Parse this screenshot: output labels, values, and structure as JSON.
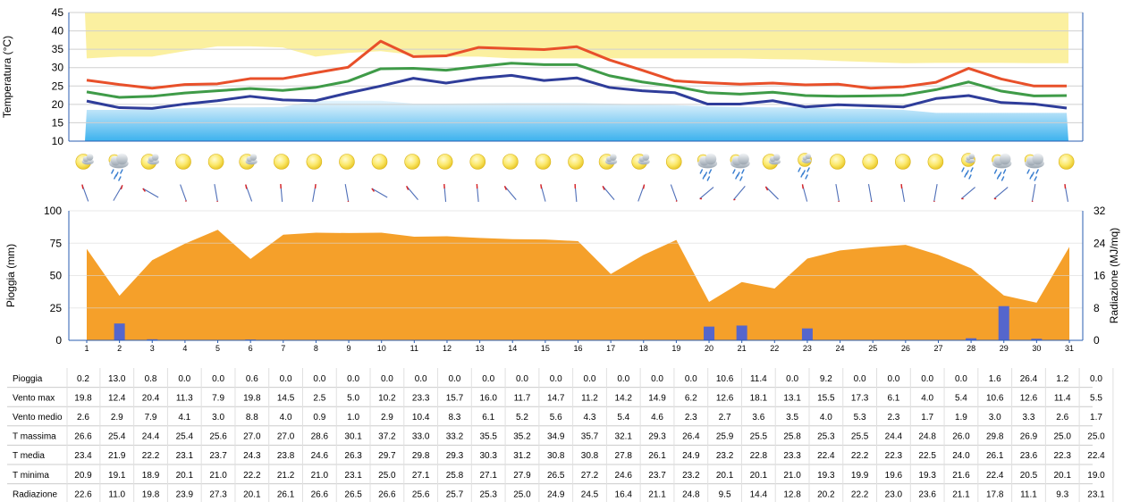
{
  "chart_data": [
    {
      "type": "line",
      "ylabel": "Temperatura (°C)",
      "ylim": [
        10,
        45
      ],
      "yticks": [
        10,
        15,
        20,
        25,
        30,
        35,
        40,
        45
      ],
      "x": [
        1,
        2,
        3,
        4,
        5,
        6,
        7,
        8,
        9,
        10,
        11,
        12,
        13,
        14,
        15,
        16,
        17,
        18,
        19,
        20,
        21,
        22,
        23,
        24,
        25,
        26,
        27,
        28,
        29,
        30,
        31
      ],
      "grid": true,
      "series": [
        {
          "name": "T massima",
          "color": "#e8502a",
          "values": [
            26.6,
            25.4,
            24.4,
            25.4,
            25.6,
            27.0,
            27.0,
            28.6,
            30.1,
            37.2,
            33.0,
            33.2,
            35.5,
            35.2,
            34.9,
            35.7,
            32.1,
            29.3,
            26.4,
            25.9,
            25.5,
            25.8,
            25.3,
            25.5,
            24.4,
            24.8,
            26.0,
            29.8,
            26.9,
            25.0,
            25.0
          ]
        },
        {
          "name": "T media",
          "color": "#3f9b48",
          "values": [
            23.4,
            21.9,
            22.2,
            23.1,
            23.7,
            24.3,
            23.8,
            24.6,
            26.3,
            29.7,
            29.8,
            29.3,
            30.3,
            31.2,
            30.8,
            30.8,
            27.8,
            26.1,
            24.9,
            23.2,
            22.8,
            23.3,
            22.4,
            22.2,
            22.3,
            22.5,
            24.0,
            26.1,
            23.6,
            22.3,
            22.4
          ]
        },
        {
          "name": "T minima",
          "color": "#2f3d9a",
          "values": [
            20.9,
            19.1,
            18.9,
            20.1,
            21.0,
            22.2,
            21.2,
            21.0,
            23.1,
            25.0,
            27.1,
            25.8,
            27.1,
            27.9,
            26.5,
            27.2,
            24.6,
            23.7,
            23.2,
            20.1,
            20.1,
            21.0,
            19.3,
            19.9,
            19.6,
            19.3,
            21.6,
            22.4,
            20.5,
            20.1,
            19.0
          ]
        }
      ],
      "band_upper": [
        32.5,
        33.0,
        33.0,
        34.5,
        35.8,
        35.8,
        35.5,
        33.0,
        34.0,
        34.5,
        33.5,
        33.0,
        33.0,
        32.5,
        32.5,
        32.5,
        32.5,
        32.5,
        32.5,
        32.5,
        32.5,
        32.3,
        32.2,
        31.8,
        31.5,
        31.2,
        31.3,
        31.3,
        31.3,
        31.2,
        31.2
      ],
      "band_lower": [
        18.5,
        18.5,
        18.6,
        19.0,
        19.2,
        19.2,
        19.3,
        21.0,
        21.0,
        21.0,
        20.2,
        20.2,
        20.3,
        20.4,
        20.4,
        20.4,
        20.2,
        20.0,
        19.8,
        19.5,
        19.3,
        19.2,
        19.2,
        18.8,
        18.8,
        18.5,
        17.7,
        17.7,
        17.7,
        17.7,
        17.7
      ]
    },
    {
      "type": "bar",
      "ylabel": "Pioggia (mm)",
      "ylabel_right": "Radiazione (MJ/mq)",
      "ylim": [
        0,
        100
      ],
      "yticks": [
        0,
        25,
        50,
        75,
        100
      ],
      "ylim_right": [
        0,
        32
      ],
      "yticks_right": [
        0,
        8,
        16,
        24,
        32
      ],
      "categories": [
        "1",
        "2",
        "3",
        "4",
        "5",
        "6",
        "7",
        "8",
        "9",
        "10",
        "11",
        "12",
        "13",
        "14",
        "15",
        "16",
        "17",
        "18",
        "19",
        "20",
        "21",
        "22",
        "23",
        "24",
        "25",
        "26",
        "27",
        "28",
        "29",
        "30",
        "31"
      ],
      "series": [
        {
          "name": "Pioggia",
          "color": "#5566cc",
          "values": [
            0.2,
            13.0,
            0.8,
            0.0,
            0.0,
            0.6,
            0.0,
            0.0,
            0.0,
            0.0,
            0.0,
            0.0,
            0.0,
            0.0,
            0.0,
            0.0,
            0.0,
            0.0,
            0.0,
            10.6,
            11.4,
            0.0,
            9.2,
            0.0,
            0.0,
            0.0,
            0.0,
            1.6,
            26.4,
            1.2,
            0.0
          ]
        },
        {
          "name": "Radiazione",
          "type": "area",
          "color": "#f5a02a",
          "values": [
            22.6,
            11.0,
            19.8,
            23.9,
            27.3,
            20.1,
            26.1,
            26.6,
            26.5,
            26.6,
            25.6,
            25.7,
            25.3,
            25.0,
            24.9,
            24.5,
            16.4,
            21.1,
            24.8,
            9.5,
            14.4,
            12.8,
            20.2,
            22.2,
            23.0,
            23.6,
            21.1,
            17.8,
            11.1,
            9.3,
            23.1
          ]
        }
      ]
    }
  ],
  "weather_icons": [
    "sun-cloud",
    "cloud-rain",
    "sun-cloud",
    "sun",
    "sun",
    "sun-cloud",
    "sun",
    "sun",
    "sun",
    "sun",
    "sun",
    "sun",
    "sun",
    "sun",
    "sun",
    "sun",
    "sun-cloud",
    "sun-cloud",
    "sun",
    "cloud-rain",
    "cloud-rain",
    "sun-cloud",
    "sun-rain",
    "sun",
    "sun",
    "sun",
    "sun",
    "sun-rain",
    "cloud-rain",
    "cloud-rain",
    "sun"
  ],
  "wind_dir_deg": [
    250,
    300,
    210,
    70,
    80,
    250,
    265,
    280,
    80,
    210,
    230,
    265,
    265,
    230,
    255,
    265,
    230,
    290,
    70,
    140,
    130,
    225,
    255,
    80,
    80,
    260,
    100,
    140,
    140,
    100,
    260
  ],
  "table": {
    "rows": [
      {
        "label": "Pioggia",
        "values": [
          "0.2",
          "13.0",
          "0.8",
          "0.0",
          "0.0",
          "0.6",
          "0.0",
          "0.0",
          "0.0",
          "0.0",
          "0.0",
          "0.0",
          "0.0",
          "0.0",
          "0.0",
          "0.0",
          "0.0",
          "0.0",
          "0.0",
          "10.6",
          "11.4",
          "0.0",
          "9.2",
          "0.0",
          "0.0",
          "0.0",
          "0.0",
          "1.6",
          "26.4",
          "1.2",
          "0.0"
        ]
      },
      {
        "label": "Vento max",
        "values": [
          "19.8",
          "12.4",
          "20.4",
          "11.3",
          "7.9",
          "19.8",
          "14.5",
          "2.5",
          "5.0",
          "10.2",
          "23.3",
          "15.7",
          "16.0",
          "11.7",
          "14.7",
          "11.2",
          "14.2",
          "14.9",
          "6.2",
          "12.6",
          "18.1",
          "13.1",
          "15.5",
          "17.3",
          "6.1",
          "4.0",
          "5.4",
          "10.6",
          "12.6",
          "11.4",
          "5.5"
        ]
      },
      {
        "label": "Vento medio",
        "values": [
          "2.6",
          "2.9",
          "7.9",
          "4.1",
          "3.0",
          "8.8",
          "4.0",
          "0.9",
          "1.0",
          "2.9",
          "10.4",
          "8.3",
          "6.1",
          "5.2",
          "5.6",
          "4.3",
          "5.4",
          "4.6",
          "2.3",
          "2.7",
          "3.6",
          "3.5",
          "4.0",
          "5.3",
          "2.3",
          "1.7",
          "1.9",
          "3.0",
          "3.3",
          "2.6",
          "1.7"
        ]
      },
      {
        "label": "T massima",
        "values": [
          "26.6",
          "25.4",
          "24.4",
          "25.4",
          "25.6",
          "27.0",
          "27.0",
          "28.6",
          "30.1",
          "37.2",
          "33.0",
          "33.2",
          "35.5",
          "35.2",
          "34.9",
          "35.7",
          "32.1",
          "29.3",
          "26.4",
          "25.9",
          "25.5",
          "25.8",
          "25.3",
          "25.5",
          "24.4",
          "24.8",
          "26.0",
          "29.8",
          "26.9",
          "25.0",
          "25.0"
        ]
      },
      {
        "label": "T media",
        "values": [
          "23.4",
          "21.9",
          "22.2",
          "23.1",
          "23.7",
          "24.3",
          "23.8",
          "24.6",
          "26.3",
          "29.7",
          "29.8",
          "29.3",
          "30.3",
          "31.2",
          "30.8",
          "30.8",
          "27.8",
          "26.1",
          "24.9",
          "23.2",
          "22.8",
          "23.3",
          "22.4",
          "22.2",
          "22.3",
          "22.5",
          "24.0",
          "26.1",
          "23.6",
          "22.3",
          "22.4"
        ]
      },
      {
        "label": "T minima",
        "values": [
          "20.9",
          "19.1",
          "18.9",
          "20.1",
          "21.0",
          "22.2",
          "21.2",
          "21.0",
          "23.1",
          "25.0",
          "27.1",
          "25.8",
          "27.1",
          "27.9",
          "26.5",
          "27.2",
          "24.6",
          "23.7",
          "23.2",
          "20.1",
          "20.1",
          "21.0",
          "19.3",
          "19.9",
          "19.6",
          "19.3",
          "21.6",
          "22.4",
          "20.5",
          "20.1",
          "19.0"
        ]
      },
      {
        "label": "Radiazione",
        "values": [
          "22.6",
          "11.0",
          "19.8",
          "23.9",
          "27.3",
          "20.1",
          "26.1",
          "26.6",
          "26.5",
          "26.6",
          "25.6",
          "25.7",
          "25.3",
          "25.0",
          "24.9",
          "24.5",
          "16.4",
          "21.1",
          "24.8",
          "9.5",
          "14.4",
          "12.8",
          "20.2",
          "22.2",
          "23.0",
          "23.6",
          "21.1",
          "17.8",
          "11.1",
          "9.3",
          "23.1"
        ]
      }
    ]
  }
}
